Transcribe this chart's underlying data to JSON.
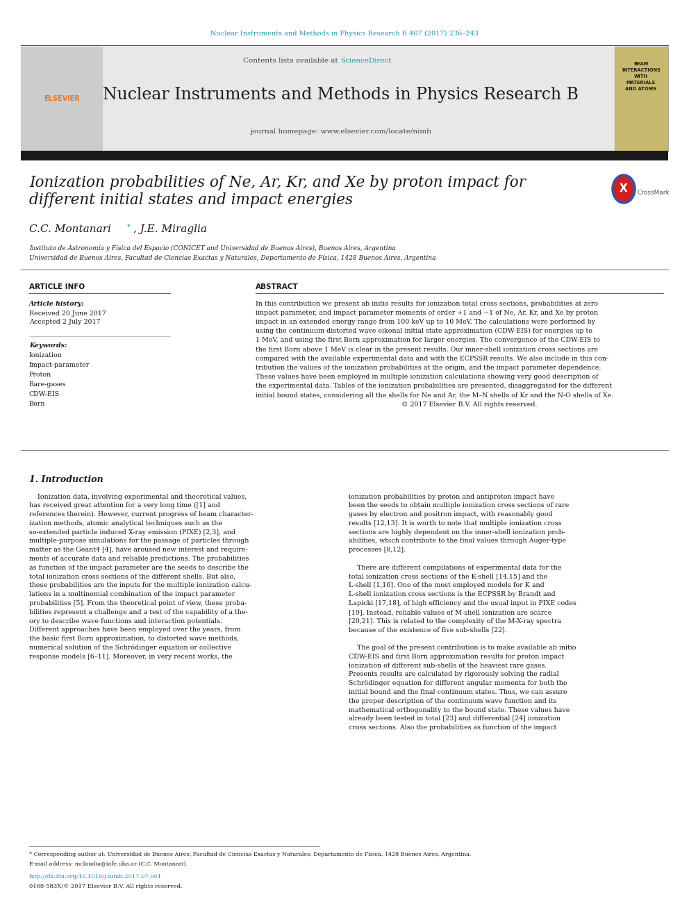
{
  "doi_text": "Nuclear Instruments and Methods in Physics Research B 407 (2017) 236–243",
  "doi_color": "#2196a8",
  "contents_text": "Contents lists available at ",
  "sciencedirect_text": "ScienceDirect",
  "journal_name": "Nuclear Instruments and Methods in Physics Research B",
  "journal_homepage": "journal homepage: www.elsevier.com/locate/nimb",
  "title_line1": "Ionization probabilities of Ne, Ar, Kr, and Xe by proton impact for",
  "title_line2": "different initial states and impact energies",
  "affil1": "Instituto de Astronomía y Física del Espacio (CONICET and Universidad de Buenos Aires), Buenos Aires, Argentina",
  "affil2": "Universidad de Buenos Aires, Facultad de Ciencias Exactas y Naturales, Departamento de Física, 1428 Buenos Aires, Argentina",
  "article_info_header": "ARTICLE INFO",
  "abstract_header": "ABSTRACT",
  "article_history_label": "Article history:",
  "received_text": "Received 20 June 2017",
  "accepted_text": "Accepted 2 July 2017",
  "keywords_label": "Keywords:",
  "keywords": [
    "Ionization",
    "Impact-parameter",
    "Proton",
    "Rare-gases",
    "CDW-EIS",
    "Born"
  ],
  "intro_header": "1. Introduction",
  "footnote_star": "* Corresponding author at: Universidad de Buenos Aires, Facultad de Ciencias Exactas y Naturales, Departamento de Física, 1428 Buenos Aires, Argentina.",
  "footnote_email": "E-mail address: mclaudia@iafe.uba.ar (C.C. Montanari).",
  "doi_footer": "http://dx.doi.org/10.1016/j.nimb.2017.07.001",
  "issn_footer": "0168-583X/© 2017 Elsevier B.V. All rights reserved.",
  "bg_color": "#ffffff",
  "header_bg": "#e8e8e8",
  "black_bar_color": "#1a1a1a",
  "link_color": "#2196a8",
  "title_font_size": 15.5,
  "body_font_size": 7.2,
  "small_font_size": 6.5,
  "abstract_lines": [
    "In this contribution we present ab initio results for ionization total cross sections, probabilities at zero",
    "impact parameter, and impact parameter moments of order +1 and −1 of Ne, Ar, Kr, and Xe by proton",
    "impact in an extended energy range from 100 keV up to 10 MeV. The calculations were performed by",
    "using the continuum distorted wave eikonal initial state approximation (CDW-EIS) for energies up to",
    "1 MeV, and using the first Born approximation for larger energies. The convergence of the CDW-EIS to",
    "the first Born above 1 MeV is clear in the present results. Our inner-shell ionization cross sections are",
    "compared with the available experimental data and with the ECPSSR results. We also include in this con-",
    "tribution the values of the ionization probabilities at the origin, and the impact parameter dependence.",
    "These values have been employed in multiple ionization calculations showing very good description of",
    "the experimental data. Tables of the ionization probabilities are presented, disaggregated for the different",
    "initial bound states, considering all the shells for Ne and Ar, the M–N shells of Kr and the N-O shells of Xe.",
    "                                                                      © 2017 Elsevier B.V. All rights reserved."
  ],
  "intro1_lines": [
    "    Ionization data, involving experimental and theoretical values,",
    "has received great attention for a very long time ([1] and",
    "references therein). However, current progress of beam character-",
    "ization methods, atomic analytical techniques such as the",
    "so-extended particle induced X-ray emission (PIXE) [2,3], and",
    "multiple-purpose simulations for the passage of particles through",
    "matter as the Geant4 [4], have aroused new interest and require-",
    "ments of accurate data and reliable predictions. The probabilities",
    "as function of the impact parameter are the seeds to describe the",
    "total ionization cross sections of the different shells. But also,",
    "these probabilities are the inputs for the multiple ionization calcu-",
    "lations in a multinomial combination of the impact parameter",
    "probabilities [5]. From the theoretical point of view, these proba-",
    "bilities represent a challenge and a test of the capability of a the-",
    "ory to describe wave functions and interaction potentials.",
    "Different approaches have been employed over the years, from",
    "the basic first Born approximation, to distorted wave methods,",
    "numerical solution of the Schrödinger equation or collective",
    "response models [6–11]. Moreover, in very recent works, the"
  ],
  "intro2_lines": [
    "ionization probabilities by proton and antiproton impact have",
    "been the seeds to obtain multiple ionization cross sections of rare",
    "gases by electron and positron impact, with reasonably good",
    "results [12,13]. It is worth to note that multiple ionization cross",
    "sections are highly dependent on the inner-shell ionization prob-",
    "abilities, which contribute to the final values through Auger-type",
    "processes [8,12].",
    "",
    "    There are different compilations of experimental data for the",
    "total ionization cross sections of the K-shell [14,15] and the",
    "L-shell [1,16]. One of the most employed models for K and",
    "L-shell ionization cross sections is the ECPSSR by Brandt and",
    "Lapicki [17,18], of high efficiency and the usual input in PIXE codes",
    "[19]. Instead, reliable values of M-shell ionization are scarce",
    "[20,21]. This is related to the complexity of the M-X-ray spectra",
    "because of the existence of five sub-shells [22].",
    "",
    "    The goal of the present contribution is to make available ab initio",
    "CDW-EIS and first Born approximation results for proton impact",
    "ionization of different sub-shells of the heaviest rare gases.",
    "Presents results are calculated by rigorously solving the radial",
    "Schrödinger equation for different angular momenta for both the",
    "initial bound and the final continuum states. Thus, we can assure",
    "the proper description of the continuum wave function and its",
    "mathematical orthogonality to the bound state. These values have",
    "already been tested in total [23] and differential [24] ionization",
    "cross sections. Also the probabilities as function of the impact"
  ]
}
